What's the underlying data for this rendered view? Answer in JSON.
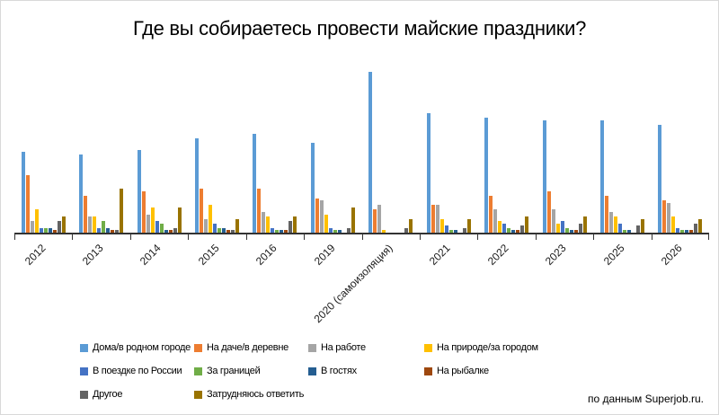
{
  "title": "Где вы собираетесь провести майские праздники?",
  "attribution": "по данным Superjob.ru.",
  "chart_data": {
    "type": "bar",
    "title": "Где вы собираетесь провести майские праздники?",
    "xlabel": "",
    "ylabel": "",
    "ylim": [
      0,
      75
    ],
    "y_axis_visible": false,
    "grid": false,
    "legend_position": "bottom",
    "categories": [
      "2012",
      "2013",
      "2014",
      "2015",
      "2016",
      "2019",
      "2020 (самоизоляция)",
      "2021",
      "2022",
      "2023",
      "2025",
      "2026"
    ],
    "series": [
      {
        "name": "Дома/в родном городе",
        "color": "#5B9BD5",
        "values": [
          35,
          34,
          36,
          41,
          43,
          39,
          70,
          52,
          50,
          49,
          49,
          47
        ]
      },
      {
        "name": "На даче/в деревне",
        "color": "#ED7D31",
        "values": [
          25,
          16,
          18,
          19,
          19,
          15,
          10,
          12,
          16,
          18,
          16,
          14
        ]
      },
      {
        "name": "На работе",
        "color": "#A5A5A5",
        "values": [
          5,
          7,
          8,
          6,
          9,
          14,
          12,
          12,
          10,
          10,
          9,
          13
        ]
      },
      {
        "name": "На природе/за городом",
        "color": "#FFC000",
        "values": [
          10,
          7,
          11,
          12,
          7,
          8,
          1,
          6,
          5,
          4,
          7,
          7
        ]
      },
      {
        "name": "В поездке по России",
        "color": "#4472C4",
        "values": [
          2,
          2,
          5,
          4,
          2,
          2,
          0,
          3,
          4,
          5,
          4,
          2
        ]
      },
      {
        "name": "За границей",
        "color": "#70AD47",
        "values": [
          2,
          5,
          4,
          2,
          1,
          1,
          0,
          1,
          2,
          2,
          1,
          1
        ]
      },
      {
        "name": "В гостях",
        "color": "#255E91",
        "values": [
          2,
          2,
          1,
          2,
          1,
          1,
          0,
          1,
          1,
          1,
          1,
          1
        ]
      },
      {
        "name": "На рыбалке",
        "color": "#9E480E",
        "values": [
          1,
          1,
          1,
          1,
          1,
          0,
          0,
          0,
          1,
          1,
          0,
          1
        ]
      },
      {
        "name": "Другое",
        "color": "#636363",
        "values": [
          5,
          1,
          2,
          1,
          5,
          2,
          2,
          2,
          3,
          4,
          3,
          4
        ]
      },
      {
        "name": "Затрудняюсь ответить",
        "color": "#997300",
        "values": [
          7,
          19,
          11,
          6,
          7,
          11,
          6,
          6,
          7,
          7,
          6,
          6
        ]
      }
    ]
  }
}
